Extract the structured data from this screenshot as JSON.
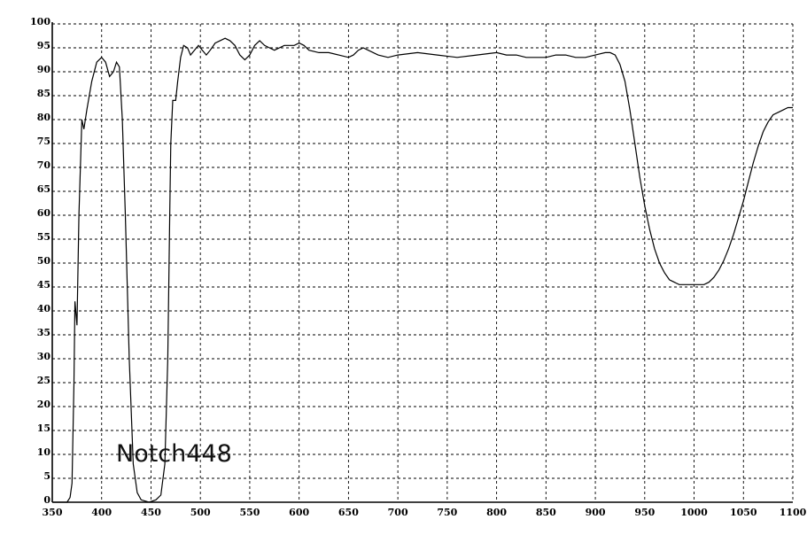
{
  "chart_data": {
    "type": "line",
    "title": "",
    "xlabel": "",
    "ylabel": "",
    "xlim": [
      350,
      1100
    ],
    "ylim": [
      0,
      100
    ],
    "x_ticks": [
      350,
      400,
      450,
      500,
      550,
      600,
      650,
      700,
      750,
      800,
      850,
      900,
      950,
      1000,
      1050,
      1100
    ],
    "y_ticks": [
      0,
      5,
      10,
      15,
      20,
      25,
      30,
      35,
      40,
      45,
      50,
      55,
      60,
      65,
      70,
      75,
      80,
      85,
      90,
      95,
      100
    ],
    "grid": true,
    "annotation": "Notch448",
    "series": [
      {
        "color": "#000000",
        "points": [
          [
            350,
            0
          ],
          [
            365,
            0
          ],
          [
            368,
            1
          ],
          [
            370,
            4
          ],
          [
            372,
            25
          ],
          [
            373,
            42
          ],
          [
            375,
            37
          ],
          [
            377,
            60
          ],
          [
            380,
            80
          ],
          [
            382,
            78
          ],
          [
            385,
            82
          ],
          [
            390,
            88
          ],
          [
            395,
            92
          ],
          [
            400,
            93
          ],
          [
            404,
            92
          ],
          [
            408,
            89
          ],
          [
            412,
            90
          ],
          [
            415,
            92
          ],
          [
            418,
            91
          ],
          [
            421,
            80
          ],
          [
            424,
            60
          ],
          [
            428,
            30
          ],
          [
            432,
            8
          ],
          [
            436,
            2
          ],
          [
            440,
            0.5
          ],
          [
            448,
            0
          ],
          [
            455,
            0.5
          ],
          [
            460,
            1.5
          ],
          [
            464,
            8
          ],
          [
            467,
            30
          ],
          [
            469,
            60
          ],
          [
            470,
            75
          ],
          [
            472,
            84
          ],
          [
            475,
            84
          ],
          [
            477,
            88
          ],
          [
            480,
            93
          ],
          [
            483,
            95.5
          ],
          [
            487,
            95
          ],
          [
            490,
            93.5
          ],
          [
            494,
            94.5
          ],
          [
            498,
            95.5
          ],
          [
            502,
            94.5
          ],
          [
            506,
            93.5
          ],
          [
            510,
            94.5
          ],
          [
            515,
            96
          ],
          [
            520,
            96.5
          ],
          [
            525,
            97
          ],
          [
            530,
            96.5
          ],
          [
            535,
            95.5
          ],
          [
            540,
            93.5
          ],
          [
            545,
            92.5
          ],
          [
            550,
            93.5
          ],
          [
            555,
            95.5
          ],
          [
            560,
            96.5
          ],
          [
            565,
            95.5
          ],
          [
            570,
            95
          ],
          [
            575,
            94.5
          ],
          [
            580,
            95
          ],
          [
            585,
            95.5
          ],
          [
            590,
            95.5
          ],
          [
            595,
            95.5
          ],
          [
            600,
            96
          ],
          [
            605,
            95.5
          ],
          [
            610,
            94.5
          ],
          [
            620,
            94
          ],
          [
            630,
            94
          ],
          [
            640,
            93.5
          ],
          [
            650,
            93
          ],
          [
            655,
            93.5
          ],
          [
            660,
            94.5
          ],
          [
            665,
            95
          ],
          [
            670,
            94.5
          ],
          [
            680,
            93.5
          ],
          [
            690,
            93
          ],
          [
            700,
            93.5
          ],
          [
            720,
            94
          ],
          [
            740,
            93.5
          ],
          [
            760,
            93
          ],
          [
            780,
            93.5
          ],
          [
            800,
            94
          ],
          [
            810,
            93.5
          ],
          [
            820,
            93.5
          ],
          [
            830,
            93
          ],
          [
            840,
            93
          ],
          [
            850,
            93
          ],
          [
            860,
            93.5
          ],
          [
            870,
            93.5
          ],
          [
            880,
            93
          ],
          [
            890,
            93
          ],
          [
            900,
            93.5
          ],
          [
            910,
            94
          ],
          [
            915,
            94
          ],
          [
            920,
            93.5
          ],
          [
            925,
            91.5
          ],
          [
            930,
            88
          ],
          [
            935,
            82
          ],
          [
            940,
            75
          ],
          [
            945,
            68
          ],
          [
            950,
            62
          ],
          [
            955,
            57
          ],
          [
            960,
            53
          ],
          [
            965,
            50
          ],
          [
            970,
            48
          ],
          [
            975,
            46.5
          ],
          [
            980,
            46
          ],
          [
            985,
            45.5
          ],
          [
            990,
            45.5
          ],
          [
            995,
            45.5
          ],
          [
            1000,
            45.5
          ],
          [
            1005,
            45.5
          ],
          [
            1010,
            45.5
          ],
          [
            1015,
            46
          ],
          [
            1020,
            47
          ],
          [
            1025,
            48.5
          ],
          [
            1030,
            50.5
          ],
          [
            1035,
            53
          ],
          [
            1040,
            56
          ],
          [
            1045,
            59.5
          ],
          [
            1050,
            63
          ],
          [
            1055,
            67
          ],
          [
            1060,
            71
          ],
          [
            1065,
            74.5
          ],
          [
            1070,
            77.5
          ],
          [
            1075,
            79.5
          ],
          [
            1080,
            81
          ],
          [
            1085,
            81.5
          ],
          [
            1090,
            82
          ],
          [
            1095,
            82.5
          ],
          [
            1100,
            82.5
          ]
        ]
      }
    ]
  }
}
